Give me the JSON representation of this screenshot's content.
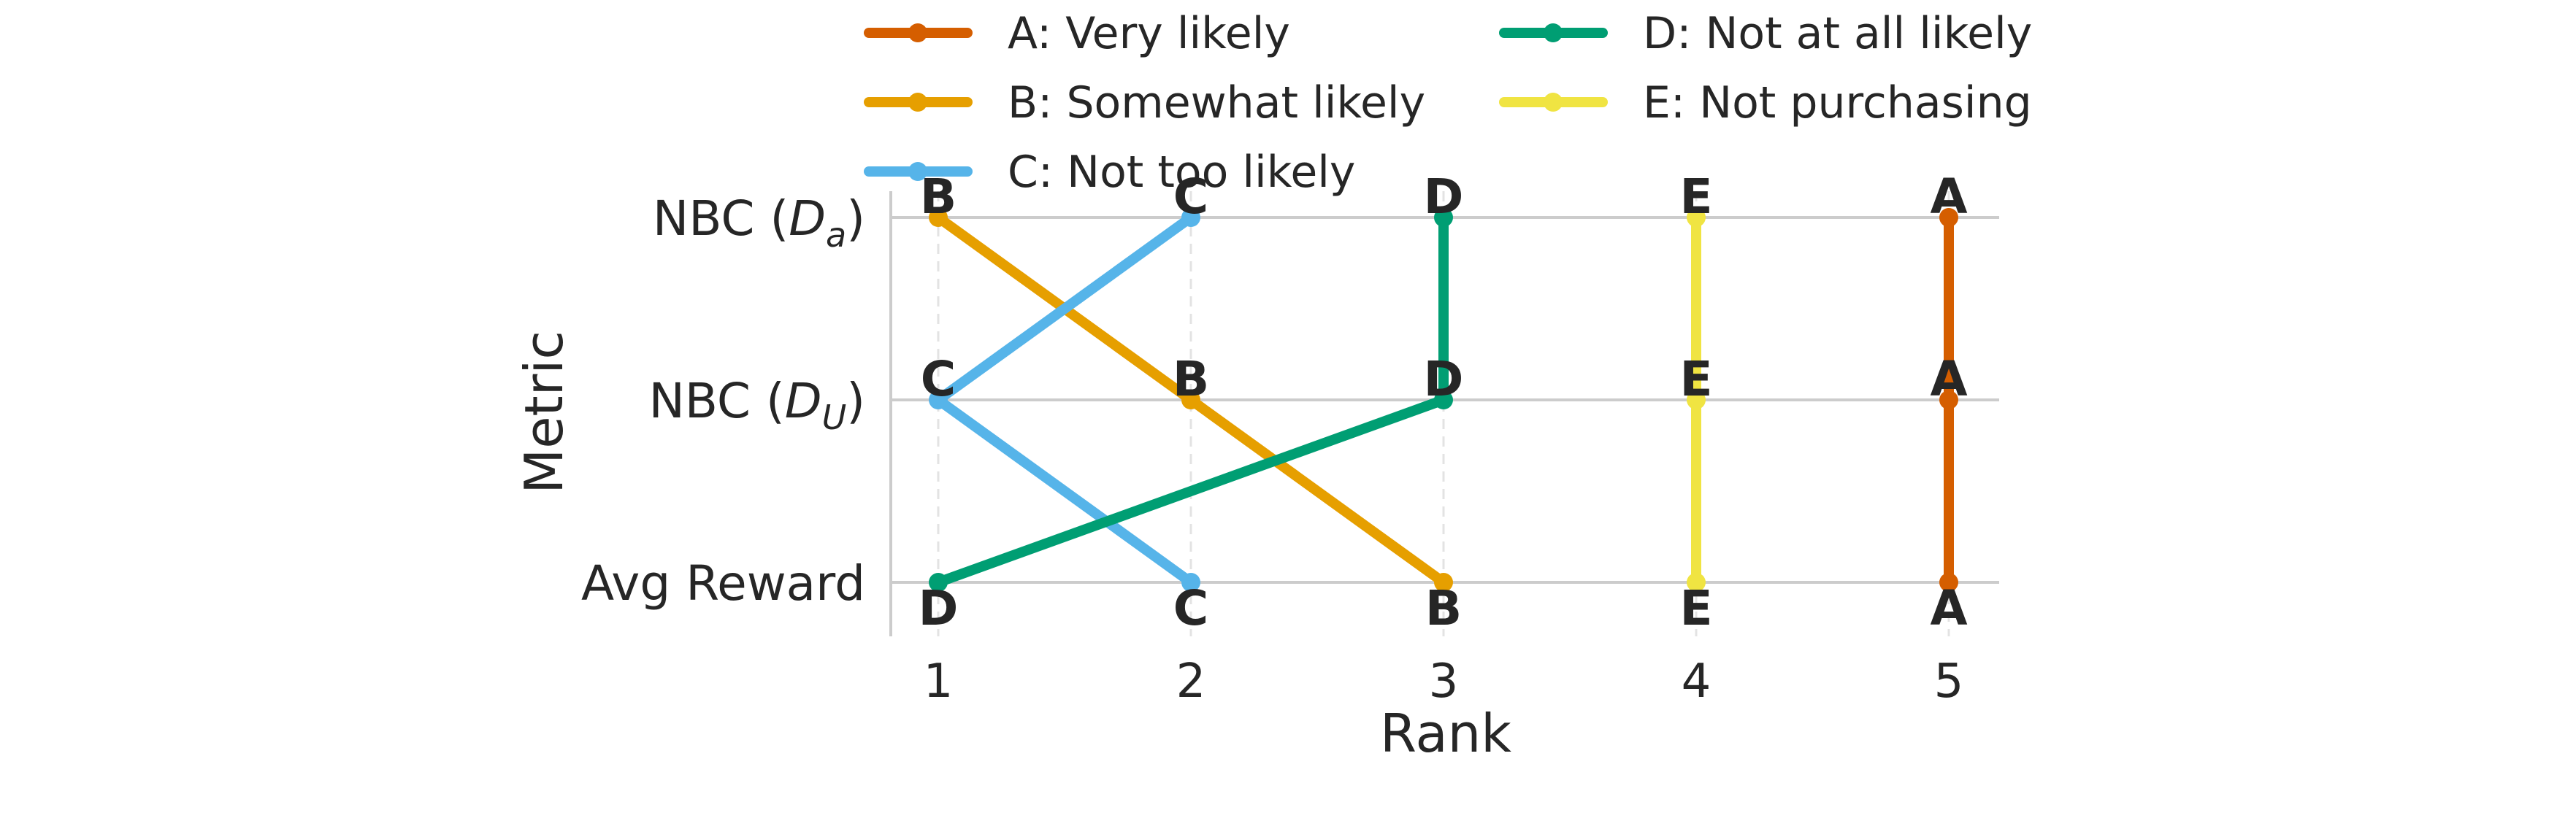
{
  "chart_data": {
    "type": "line",
    "xlabel": "Rank",
    "ylabel": "Metric",
    "x_ticks": [
      1,
      2,
      3,
      4,
      5
    ],
    "xlim": [
      0.8,
      5.2
    ],
    "categories": [
      {
        "id": "Avg Reward",
        "main": "Avg Reward",
        "sub": ""
      },
      {
        "id": "NBC (D_U)",
        "main": "NBC (",
        "sym": "D",
        "sub": "U",
        "close": ")"
      },
      {
        "id": "NBC (D_a)",
        "main": "NBC (",
        "sym": "D",
        "sub": "a",
        "close": ")"
      }
    ],
    "grid": "horizontal solid, vertical dashed",
    "legend_placement": "top-center",
    "series": [
      {
        "name": "A: Very likely",
        "letter": "A",
        "color": "#D55E00",
        "ranks": [
          5,
          5,
          5
        ]
      },
      {
        "name": "B: Somewhat likely",
        "letter": "B",
        "color": "#E69F00",
        "ranks": [
          3,
          2,
          1
        ]
      },
      {
        "name": "C: Not too likely",
        "letter": "C",
        "color": "#56B4E9",
        "ranks": [
          2,
          1,
          2
        ]
      },
      {
        "name": "D: Not at all likely",
        "letter": "D",
        "color": "#009E73",
        "ranks": [
          1,
          3,
          3
        ]
      },
      {
        "name": "E: Not purchasing",
        "letter": "E",
        "color": "#F0E442",
        "ranks": [
          4,
          4,
          4
        ]
      }
    ]
  }
}
